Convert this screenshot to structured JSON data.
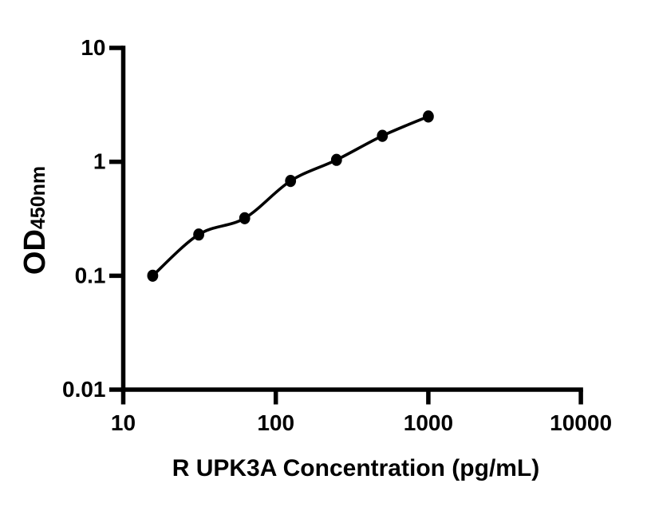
{
  "chart_data": {
    "type": "scatter",
    "curve_style": "smooth fitted standard-curve line through points",
    "x": [
      15.6,
      31.25,
      62.5,
      125,
      250,
      500,
      1000
    ],
    "y": [
      0.1,
      0.23,
      0.32,
      0.68,
      1.04,
      1.69,
      2.5
    ],
    "xlabel": "R UPK3A Concentration (pg/mL)",
    "ylabel": "OD",
    "ylabel_subscript": "450nm",
    "xscale": "log",
    "yscale": "log",
    "xlim": [
      10,
      10000
    ],
    "ylim": [
      0.01,
      10
    ],
    "xticks": [
      "10",
      "100",
      "1000",
      "10000"
    ],
    "yticks": [
      "10",
      "1",
      "0.1",
      "0.01"
    ],
    "grid": false,
    "legend": false,
    "marker_color": "#000000",
    "line_color": "#000000",
    "axis_color": "#000000",
    "background": "#ffffff"
  }
}
